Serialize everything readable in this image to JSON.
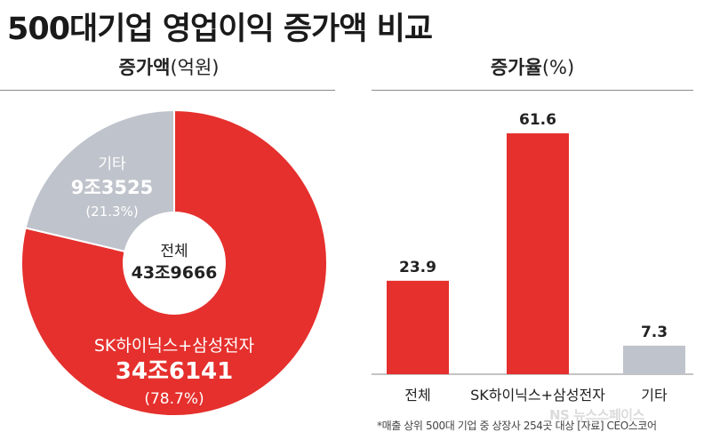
{
  "header": {
    "title": "500대기업 영업이익 증가액 비교"
  },
  "left_panel": {
    "title_bold": "증가액",
    "title_unit": "(억원)"
  },
  "right_panel": {
    "title_bold": "증가율",
    "title_unit": "(%)"
  },
  "footnote": "*매출 상위 500대 기업 중 상장사 254곳 대상 [자료] CEO스코어",
  "watermark": "NS 뉴스스페이스",
  "colors": {
    "red": "#e5302d",
    "gray": "#bfc3cb",
    "white": "#ffffff"
  },
  "chart_data": [
    {
      "type": "pie",
      "title": "증가액(억원)",
      "center_label": "전체",
      "center_value": "43조9666",
      "slices": [
        {
          "name": "SK하이닉스+삼성전자",
          "value_label": "34조6141",
          "percent_label": "(78.7%)",
          "percent": 78.7,
          "color": "#e5302d"
        },
        {
          "name": "기타",
          "value_label": "9조3525",
          "percent_label": "(21.3%)",
          "percent": 21.3,
          "color": "#bfc3cb"
        }
      ]
    },
    {
      "type": "bar",
      "title": "증가율(%)",
      "categories": [
        "전체",
        "SK하이닉스+삼성전자",
        "기타"
      ],
      "values": [
        23.9,
        61.6,
        7.3
      ],
      "colors": [
        "#e5302d",
        "#e5302d",
        "#bfc3cb"
      ],
      "ylim": [
        0,
        61.6
      ]
    }
  ]
}
